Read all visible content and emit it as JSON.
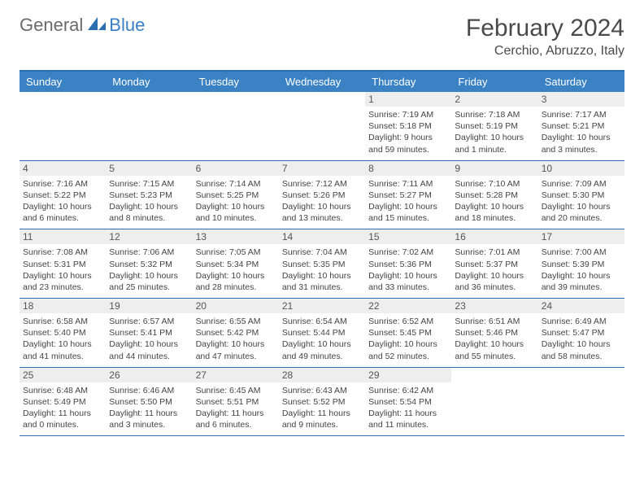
{
  "logo": {
    "part1": "General",
    "part2": "Blue"
  },
  "header": {
    "month": "February 2024",
    "location": "Cerchio, Abruzzo, Italy"
  },
  "colors": {
    "header_blue": "#3a82c4",
    "border_blue": "#2b6fb0",
    "daynum_bg": "#eeeeee",
    "text_gray": "#4a4a4a"
  },
  "weekdays": [
    "Sunday",
    "Monday",
    "Tuesday",
    "Wednesday",
    "Thursday",
    "Friday",
    "Saturday"
  ],
  "weeks": [
    [
      null,
      null,
      null,
      null,
      {
        "n": "1",
        "sr": "7:19 AM",
        "ss": "5:18 PM",
        "dl": "9 hours and 59 minutes."
      },
      {
        "n": "2",
        "sr": "7:18 AM",
        "ss": "5:19 PM",
        "dl": "10 hours and 1 minute."
      },
      {
        "n": "3",
        "sr": "7:17 AM",
        "ss": "5:21 PM",
        "dl": "10 hours and 3 minutes."
      }
    ],
    [
      {
        "n": "4",
        "sr": "7:16 AM",
        "ss": "5:22 PM",
        "dl": "10 hours and 6 minutes."
      },
      {
        "n": "5",
        "sr": "7:15 AM",
        "ss": "5:23 PM",
        "dl": "10 hours and 8 minutes."
      },
      {
        "n": "6",
        "sr": "7:14 AM",
        "ss": "5:25 PM",
        "dl": "10 hours and 10 minutes."
      },
      {
        "n": "7",
        "sr": "7:12 AM",
        "ss": "5:26 PM",
        "dl": "10 hours and 13 minutes."
      },
      {
        "n": "8",
        "sr": "7:11 AM",
        "ss": "5:27 PM",
        "dl": "10 hours and 15 minutes."
      },
      {
        "n": "9",
        "sr": "7:10 AM",
        "ss": "5:28 PM",
        "dl": "10 hours and 18 minutes."
      },
      {
        "n": "10",
        "sr": "7:09 AM",
        "ss": "5:30 PM",
        "dl": "10 hours and 20 minutes."
      }
    ],
    [
      {
        "n": "11",
        "sr": "7:08 AM",
        "ss": "5:31 PM",
        "dl": "10 hours and 23 minutes."
      },
      {
        "n": "12",
        "sr": "7:06 AM",
        "ss": "5:32 PM",
        "dl": "10 hours and 25 minutes."
      },
      {
        "n": "13",
        "sr": "7:05 AM",
        "ss": "5:34 PM",
        "dl": "10 hours and 28 minutes."
      },
      {
        "n": "14",
        "sr": "7:04 AM",
        "ss": "5:35 PM",
        "dl": "10 hours and 31 minutes."
      },
      {
        "n": "15",
        "sr": "7:02 AM",
        "ss": "5:36 PM",
        "dl": "10 hours and 33 minutes."
      },
      {
        "n": "16",
        "sr": "7:01 AM",
        "ss": "5:37 PM",
        "dl": "10 hours and 36 minutes."
      },
      {
        "n": "17",
        "sr": "7:00 AM",
        "ss": "5:39 PM",
        "dl": "10 hours and 39 minutes."
      }
    ],
    [
      {
        "n": "18",
        "sr": "6:58 AM",
        "ss": "5:40 PM",
        "dl": "10 hours and 41 minutes."
      },
      {
        "n": "19",
        "sr": "6:57 AM",
        "ss": "5:41 PM",
        "dl": "10 hours and 44 minutes."
      },
      {
        "n": "20",
        "sr": "6:55 AM",
        "ss": "5:42 PM",
        "dl": "10 hours and 47 minutes."
      },
      {
        "n": "21",
        "sr": "6:54 AM",
        "ss": "5:44 PM",
        "dl": "10 hours and 49 minutes."
      },
      {
        "n": "22",
        "sr": "6:52 AM",
        "ss": "5:45 PM",
        "dl": "10 hours and 52 minutes."
      },
      {
        "n": "23",
        "sr": "6:51 AM",
        "ss": "5:46 PM",
        "dl": "10 hours and 55 minutes."
      },
      {
        "n": "24",
        "sr": "6:49 AM",
        "ss": "5:47 PM",
        "dl": "10 hours and 58 minutes."
      }
    ],
    [
      {
        "n": "25",
        "sr": "6:48 AM",
        "ss": "5:49 PM",
        "dl": "11 hours and 0 minutes."
      },
      {
        "n": "26",
        "sr": "6:46 AM",
        "ss": "5:50 PM",
        "dl": "11 hours and 3 minutes."
      },
      {
        "n": "27",
        "sr": "6:45 AM",
        "ss": "5:51 PM",
        "dl": "11 hours and 6 minutes."
      },
      {
        "n": "28",
        "sr": "6:43 AM",
        "ss": "5:52 PM",
        "dl": "11 hours and 9 minutes."
      },
      {
        "n": "29",
        "sr": "6:42 AM",
        "ss": "5:54 PM",
        "dl": "11 hours and 11 minutes."
      },
      null,
      null
    ]
  ],
  "labels": {
    "sunrise": "Sunrise: ",
    "sunset": "Sunset: ",
    "daylight": "Daylight: "
  }
}
